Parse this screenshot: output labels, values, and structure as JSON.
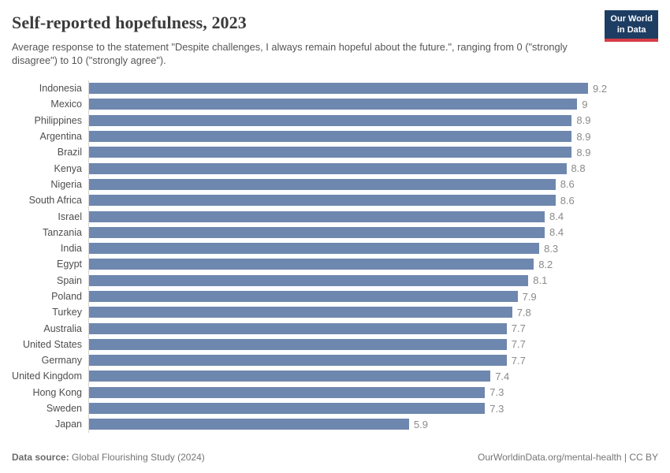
{
  "header": {
    "title": "Self-reported hopefulness, 2023",
    "subtitle": "Average response to the statement \"Despite challenges, I always remain hopeful about the future.\", ranging from 0 (\"strongly disagree\") to 10 (\"strongly agree\").",
    "logo": {
      "line1": "Our World",
      "line2": "in Data",
      "bg_color": "#1d3d63",
      "accent_color": "#d73c45"
    }
  },
  "chart_data": {
    "type": "bar",
    "orientation": "horizontal",
    "title": "Self-reported hopefulness, 2023",
    "xlabel": "",
    "ylabel": "",
    "xlim": [
      0,
      9.2
    ],
    "scale_note": "response scale 0-10, bars drawn proportional to value with max bar 9.2",
    "grid": false,
    "legend": false,
    "bar_color": "#6e87ae",
    "categories": [
      "Indonesia",
      "Mexico",
      "Philippines",
      "Argentina",
      "Brazil",
      "Kenya",
      "Nigeria",
      "South Africa",
      "Israel",
      "Tanzania",
      "India",
      "Egypt",
      "Spain",
      "Poland",
      "Turkey",
      "Australia",
      "United States",
      "Germany",
      "United Kingdom",
      "Hong Kong",
      "Sweden",
      "Japan"
    ],
    "values": [
      9.2,
      9,
      8.9,
      8.9,
      8.9,
      8.8,
      8.6,
      8.6,
      8.4,
      8.4,
      8.3,
      8.2,
      8.1,
      7.9,
      7.8,
      7.7,
      7.7,
      7.7,
      7.4,
      7.3,
      7.3,
      5.9
    ]
  },
  "footer": {
    "source_label": "Data source:",
    "source_text": " Global Flourishing Study (2024)",
    "credit": "OurWorldinData.org/mental-health | CC BY"
  }
}
